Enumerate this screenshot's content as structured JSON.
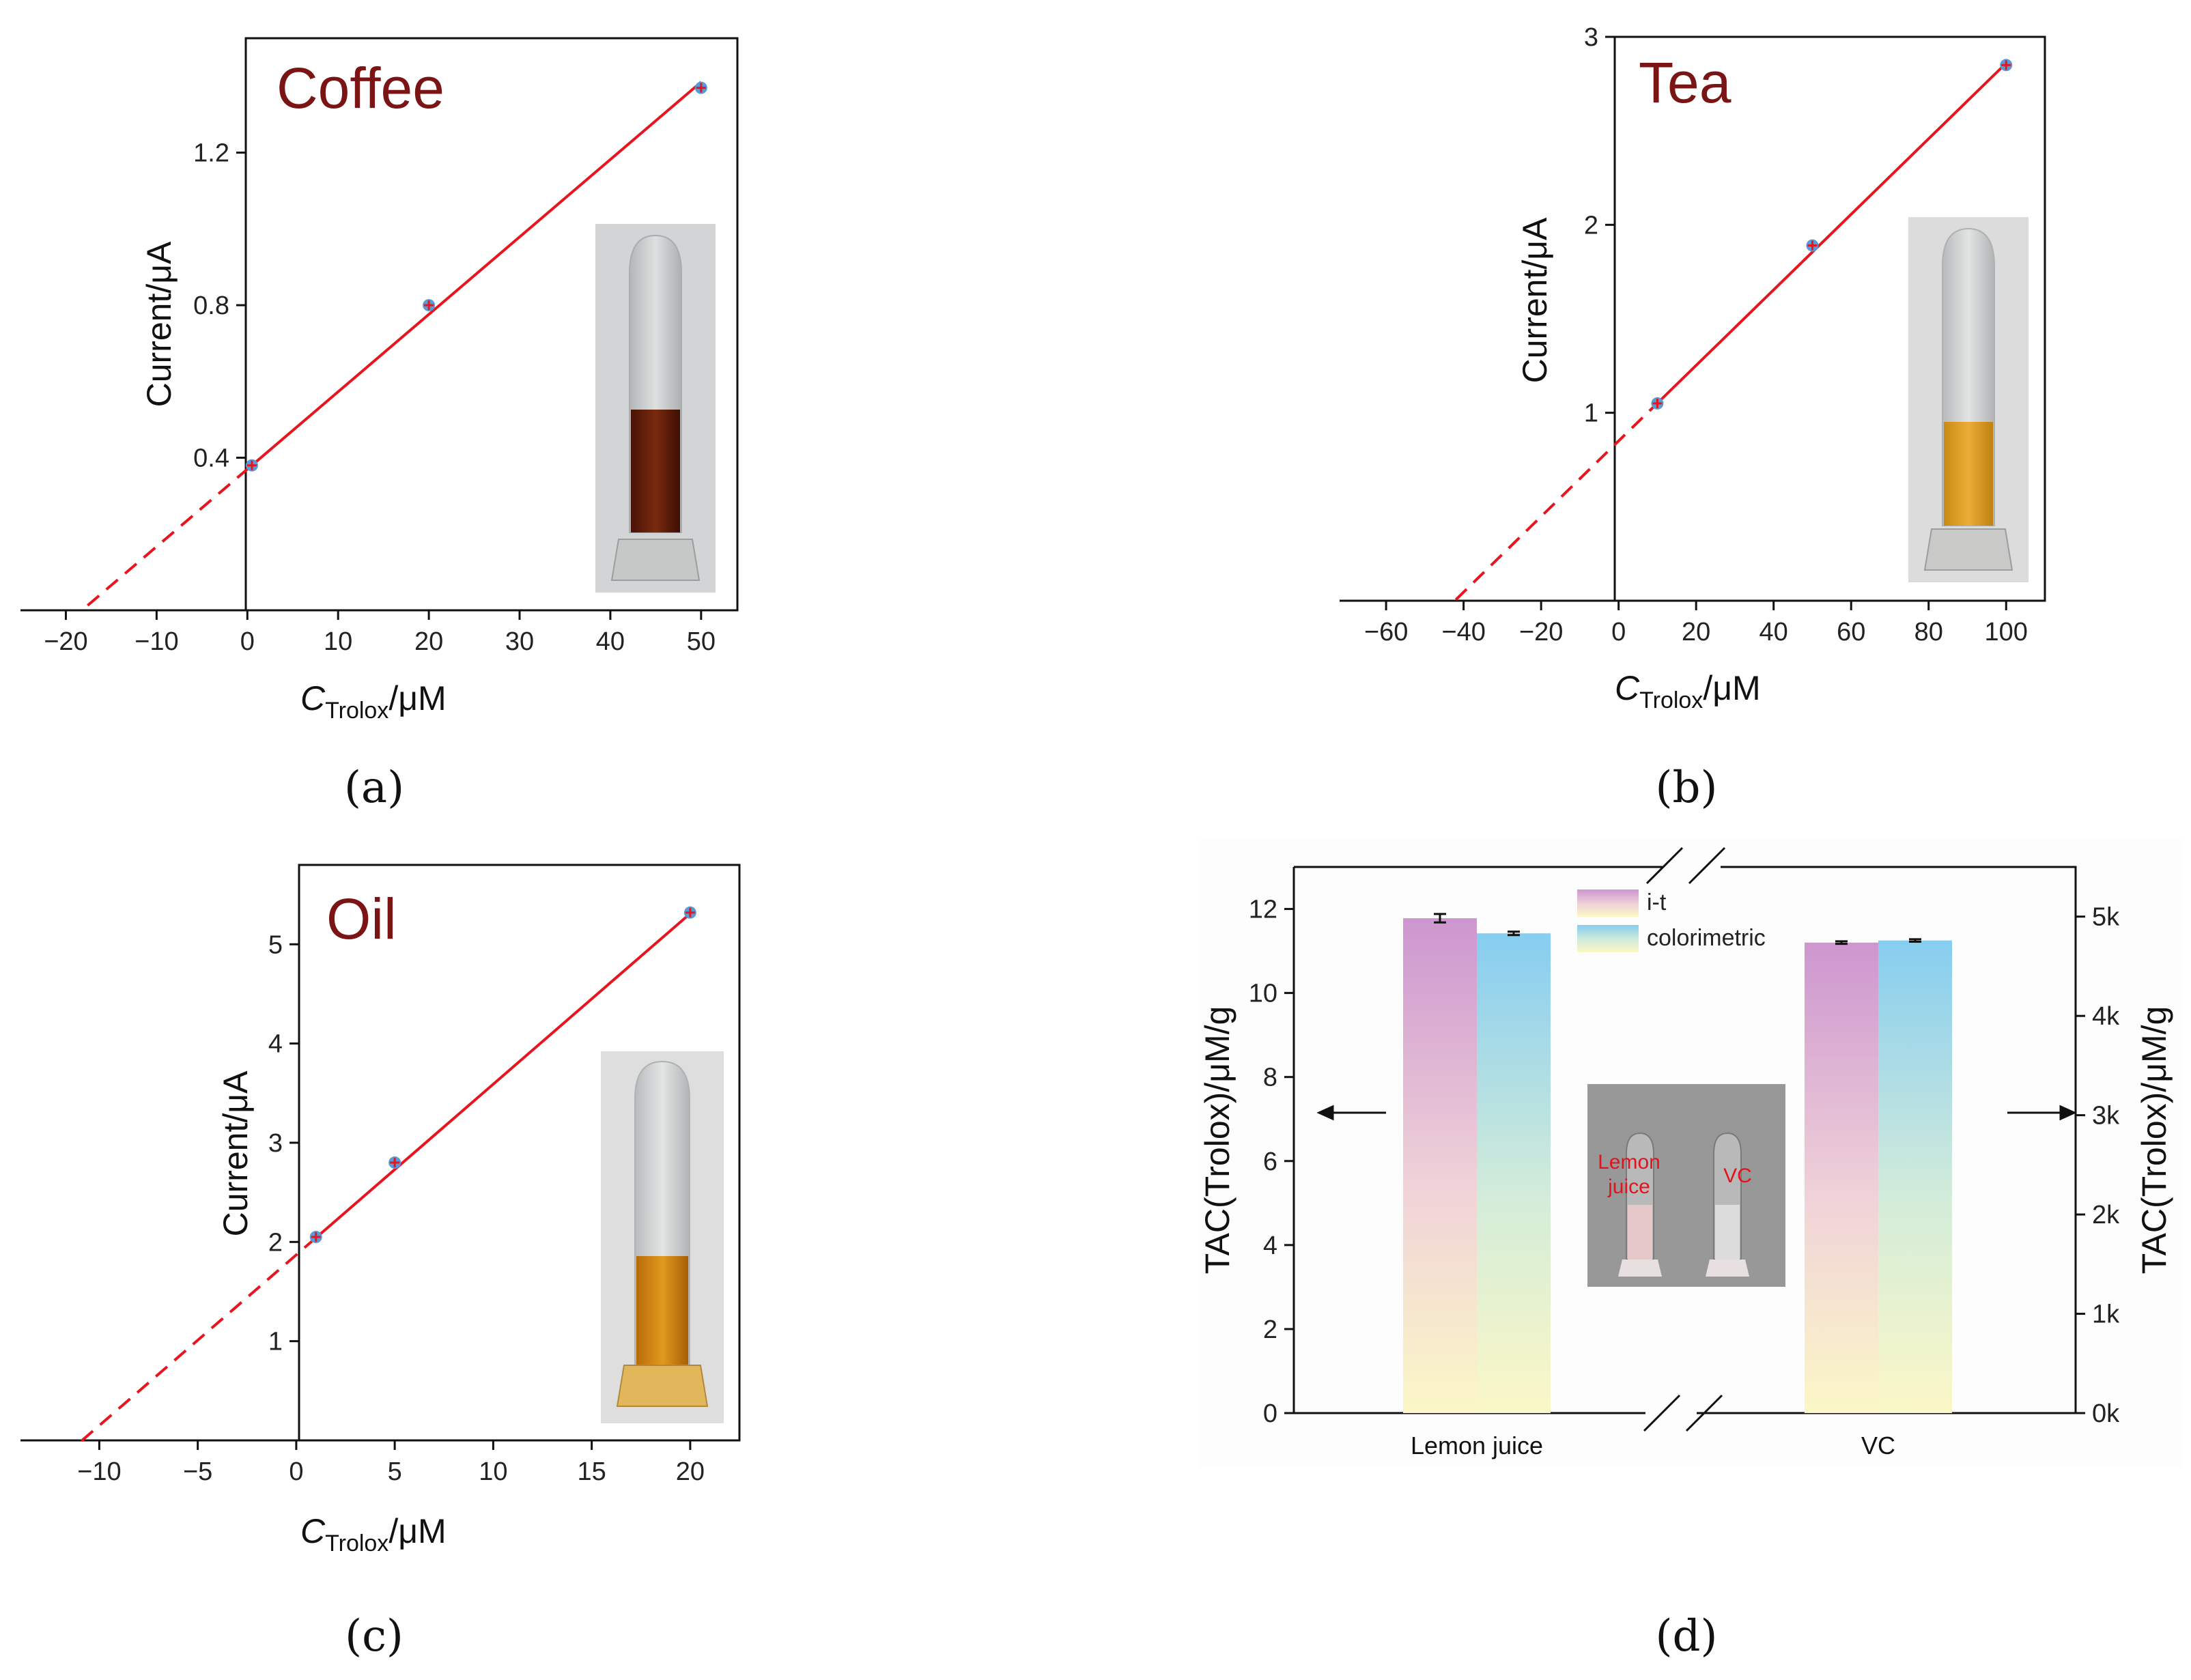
{
  "panel_labels": [
    "(a)",
    "(b)",
    "(c)",
    "(d)"
  ],
  "colors": {
    "fit_line": "#e8141e",
    "marker_fill": "#5b9bd5",
    "marker_cross": "#e8141e",
    "title": "#7b1414",
    "bar_it_top": "#cd96cf",
    "bar_color_top": "#86cdf0",
    "bar_bottom": "#fbf7c6"
  },
  "chart_data": [
    {
      "type": "scatter",
      "panel": "a",
      "title": "Coffee",
      "xlabel_main": "C",
      "xlabel_sub": "Trolox",
      "xlabel_unit": "/μM",
      "ylabel": "Current/μA",
      "xlim": [
        -25,
        54
      ],
      "ylim": [
        0,
        1.5
      ],
      "xticks": [
        -20,
        -10,
        0,
        10,
        20,
        30,
        40,
        50
      ],
      "xtick_labels": [
        "−20",
        "−10",
        "0",
        "10",
        "20",
        "30",
        "40",
        "50"
      ],
      "yticks": [
        0.4,
        0.8,
        1.2
      ],
      "ytick_labels": [
        "0.4",
        "0.8",
        "1.2"
      ],
      "x": [
        0.5,
        20,
        50
      ],
      "y": [
        0.38,
        0.8,
        1.37
      ],
      "fit": {
        "slope": 0.0203,
        "intercept": 0.37,
        "x_start": -17.6,
        "x_solid_start": 0.5,
        "x_end": 50
      }
    },
    {
      "type": "scatter",
      "panel": "b",
      "title": "Tea",
      "xlabel_main": "C",
      "xlabel_sub": "Trolox",
      "xlabel_unit": "/μM",
      "ylabel": "Current/μA",
      "xlim": [
        -72,
        110
      ],
      "ylim": [
        0,
        3
      ],
      "xticks": [
        -60,
        -40,
        -20,
        0,
        20,
        40,
        60,
        80,
        100
      ],
      "xtick_labels": [
        "−60",
        "−40",
        "−20",
        "0",
        "20",
        "40",
        "60",
        "80",
        "100"
      ],
      "yticks": [
        1,
        2,
        3
      ],
      "ytick_labels": [
        "1",
        "2",
        "3"
      ],
      "x": [
        10,
        50,
        100
      ],
      "y": [
        1.05,
        1.89,
        2.85
      ],
      "fit": {
        "slope": 0.0201,
        "intercept": 0.85,
        "x_start": -42,
        "x_solid_start": 10,
        "x_end": 100
      }
    },
    {
      "type": "scatter",
      "panel": "c",
      "title": "Oil",
      "xlabel_main": "C",
      "xlabel_sub": "Trolox",
      "xlabel_unit": "/μM",
      "ylabel": "Current/μA",
      "xlim": [
        -14,
        22.5
      ],
      "ylim": [
        0,
        5.8
      ],
      "xticks": [
        -10,
        -5,
        0,
        5,
        10,
        15,
        20
      ],
      "xtick_labels": [
        "−10",
        "−5",
        "0",
        "5",
        "10",
        "15",
        "20"
      ],
      "yticks": [
        1,
        2,
        3,
        4,
        5
      ],
      "ytick_labels": [
        "1",
        "2",
        "3",
        "4",
        "5"
      ],
      "x": [
        1,
        5,
        20
      ],
      "y": [
        2.05,
        2.8,
        5.32
      ],
      "fit": {
        "slope": 0.172,
        "intercept": 1.87,
        "x_start": -10.9,
        "x_solid_start": 1,
        "x_end": 20
      }
    },
    {
      "type": "bar",
      "panel": "d",
      "categories": [
        "Lemon juice",
        "VC"
      ],
      "series": [
        {
          "name": "i-t",
          "values": [
            11.78,
            11.2
          ],
          "errors": [
            0.1,
            0.03
          ]
        },
        {
          "name": "colorimetric",
          "values": [
            11.42,
            11.25
          ],
          "errors": [
            0.04,
            0.03
          ]
        }
      ],
      "ylabel_left": "TAC(Trolox)/μM/g",
      "ylabel_right": "TAC(Trolox)/μM/g",
      "ylim_left": [
        0,
        13
      ],
      "yticks_left": [
        0,
        2,
        4,
        6,
        8,
        10,
        12
      ],
      "ytick_labels_left": [
        "0",
        "2",
        "4",
        "6",
        "8",
        "10",
        "12"
      ],
      "ylim_right": [
        0,
        5500
      ],
      "yticks_right": [
        0,
        1000,
        2000,
        3000,
        4000,
        5000
      ],
      "ytick_labels_right": [
        "0k",
        "1k",
        "2k",
        "3k",
        "4k",
        "5k"
      ],
      "axis_break": true,
      "legend_position": "top-center",
      "inset_labels": [
        "Lemon",
        "juice",
        "VC"
      ]
    }
  ]
}
